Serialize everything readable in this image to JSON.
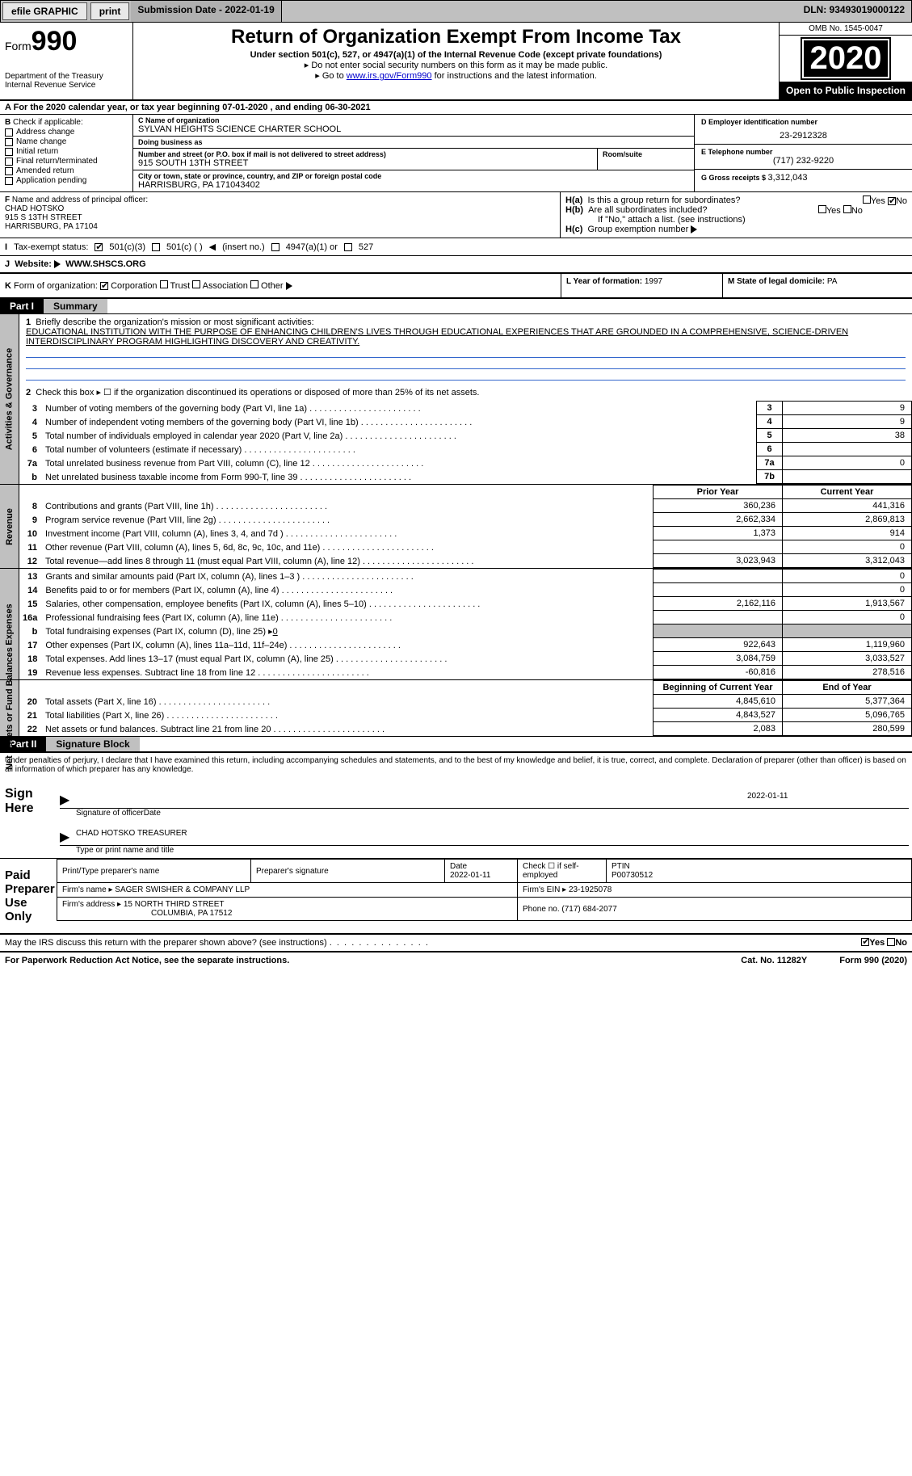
{
  "topbar": {
    "efile": "efile GRAPHIC",
    "print": "print",
    "submission": "Submission Date - 2022-01-19",
    "dln": "DLN: 93493019000122"
  },
  "header": {
    "form_label": "Form",
    "form_number": "990",
    "dept": "Department of the Treasury\nInternal Revenue Service",
    "title": "Return of Organization Exempt From Income Tax",
    "subtitle": "Under section 501(c), 527, or 4947(a)(1) of the Internal Revenue Code (except private foundations)",
    "note1": "Do not enter social security numbers on this form as it may be made public.",
    "note2_pre": "Go to ",
    "note2_link": "www.irs.gov/Form990",
    "note2_post": " for instructions and the latest information.",
    "omb": "OMB No. 1545-0047",
    "year": "2020",
    "open": "Open to Public Inspection"
  },
  "sectionA": {
    "text_pre": "For the 2020 calendar year, or tax year beginning ",
    "begin": "07-01-2020",
    "mid": " , and ending ",
    "end": "06-30-2021"
  },
  "blockB": {
    "label": "B",
    "check": "Check if applicable:",
    "items": [
      "Address change",
      "Name change",
      "Initial return",
      "Final return/terminated",
      "Amended return",
      "Application pending"
    ]
  },
  "blockC": {
    "name_lbl": "C Name of organization",
    "name": "SYLVAN HEIGHTS SCIENCE CHARTER SCHOOL",
    "dba_lbl": "Doing business as",
    "dba": "",
    "street_lbl": "Number and street (or P.O. box if mail is not delivered to street address)",
    "street": "915 SOUTH 13TH STREET",
    "room_lbl": "Room/suite",
    "city_lbl": "City or town, state or province, country, and ZIP or foreign postal code",
    "city": "HARRISBURG, PA  171043402"
  },
  "blockD": {
    "ein_lbl": "D Employer identification number",
    "ein": "23-2912328",
    "phone_lbl": "E Telephone number",
    "phone": "(717) 232-9220",
    "gross_lbl": "G Gross receipts $ ",
    "gross": "3,312,043"
  },
  "blockF": {
    "lbl": "F",
    "name_lbl": "Name and address of principal officer:",
    "name": "CHAD HOTSKO",
    "addr1": "915 S 13TH STREET",
    "addr2": "HARRISBURG, PA  17104"
  },
  "blockH": {
    "ha": "H(a)",
    "ha_text": "Is this a group return for subordinates?",
    "hb": "H(b)",
    "hb_text": "Are all subordinates included?",
    "hb_note": "If \"No,\" attach a list. (see instructions)",
    "hc": "H(c)",
    "hc_text": "Group exemption number",
    "yes": "Yes",
    "no": "No"
  },
  "taxexempt": {
    "lbl": "I",
    "text": "Tax-exempt status:",
    "opt1": "501(c)(3)",
    "opt2": "501(c) (   )",
    "opt2_note": "(insert no.)",
    "opt3": "4947(a)(1) or",
    "opt4": "527"
  },
  "website": {
    "lbl": "J",
    "text": "Website:",
    "url": "WWW.SHSCS.ORG"
  },
  "korg": {
    "lbl": "K",
    "text": "Form of organization:",
    "opts": [
      "Corporation",
      "Trust",
      "Association",
      "Other"
    ],
    "year_lbl": "L Year of formation: ",
    "year": "1997",
    "state_lbl": "M State of legal domicile: ",
    "state": "PA"
  },
  "part1": {
    "tab": "Part I",
    "title": "Summary",
    "side1": "Activities & Governance",
    "side2": "Revenue",
    "side3": "Expenses",
    "side4": "Net Assets or Fund Balances",
    "line1_lbl": "1",
    "line1": "Briefly describe the organization's mission or most significant activities:",
    "mission": "EDUCATIONAL INSTITUTION WITH THE PURPOSE OF ENHANCING CHILDREN'S LIVES THROUGH EDUCATIONAL EXPERIENCES THAT ARE GROUNDED IN A COMPREHENSIVE, SCIENCE-DRIVEN INTERDISCIPLINARY PROGRAM HIGHLIGHTING DISCOVERY AND CREATIVITY.",
    "line2": "Check this box ▸ ☐  if the organization discontinued its operations or disposed of more than 25% of its net assets.",
    "rows_gov": [
      {
        "n": "3",
        "t": "Number of voting members of the governing body (Part VI, line 1a)",
        "b": "3",
        "v": "9"
      },
      {
        "n": "4",
        "t": "Number of independent voting members of the governing body (Part VI, line 1b)",
        "b": "4",
        "v": "9"
      },
      {
        "n": "5",
        "t": "Total number of individuals employed in calendar year 2020 (Part V, line 2a)",
        "b": "5",
        "v": "38"
      },
      {
        "n": "6",
        "t": "Total number of volunteers (estimate if necessary)",
        "b": "6",
        "v": ""
      },
      {
        "n": "7a",
        "t": "Total unrelated business revenue from Part VIII, column (C), line 12",
        "b": "7a",
        "v": "0"
      },
      {
        "n": "b",
        "t": "Net unrelated business taxable income from Form 990-T, line 39",
        "b": "7b",
        "v": ""
      }
    ],
    "prior_hdr": "Prior Year",
    "current_hdr": "Current Year",
    "rows_rev": [
      {
        "n": "8",
        "t": "Contributions and grants (Part VIII, line 1h)",
        "p": "360,236",
        "c": "441,316"
      },
      {
        "n": "9",
        "t": "Program service revenue (Part VIII, line 2g)",
        "p": "2,662,334",
        "c": "2,869,813"
      },
      {
        "n": "10",
        "t": "Investment income (Part VIII, column (A), lines 3, 4, and 7d )",
        "p": "1,373",
        "c": "914"
      },
      {
        "n": "11",
        "t": "Other revenue (Part VIII, column (A), lines 5, 6d, 8c, 9c, 10c, and 11e)",
        "p": "",
        "c": "0"
      },
      {
        "n": "12",
        "t": "Total revenue—add lines 8 through 11 (must equal Part VIII, column (A), line 12)",
        "p": "3,023,943",
        "c": "3,312,043"
      }
    ],
    "rows_exp": [
      {
        "n": "13",
        "t": "Grants and similar amounts paid (Part IX, column (A), lines 1–3 )",
        "p": "",
        "c": "0"
      },
      {
        "n": "14",
        "t": "Benefits paid to or for members (Part IX, column (A), line 4)",
        "p": "",
        "c": "0"
      },
      {
        "n": "15",
        "t": "Salaries, other compensation, employee benefits (Part IX, column (A), lines 5–10)",
        "p": "2,162,116",
        "c": "1,913,567"
      },
      {
        "n": "16a",
        "t": "Professional fundraising fees (Part IX, column (A), line 11e)",
        "p": "",
        "c": "0"
      }
    ],
    "line16b": "Total fundraising expenses (Part IX, column (D), line 25) ▸",
    "line16b_val": "0",
    "rows_exp2": [
      {
        "n": "17",
        "t": "Other expenses (Part IX, column (A), lines 11a–11d, 11f–24e)",
        "p": "922,643",
        "c": "1,119,960"
      },
      {
        "n": "18",
        "t": "Total expenses. Add lines 13–17 (must equal Part IX, column (A), line 25)",
        "p": "3,084,759",
        "c": "3,033,527"
      },
      {
        "n": "19",
        "t": "Revenue less expenses. Subtract line 18 from line 12",
        "p": "-60,816",
        "c": "278,516"
      }
    ],
    "begin_hdr": "Beginning of Current Year",
    "end_hdr": "End of Year",
    "rows_net": [
      {
        "n": "20",
        "t": "Total assets (Part X, line 16)",
        "p": "4,845,610",
        "c": "5,377,364"
      },
      {
        "n": "21",
        "t": "Total liabilities (Part X, line 26)",
        "p": "4,843,527",
        "c": "5,096,765"
      },
      {
        "n": "22",
        "t": "Net assets or fund balances. Subtract line 21 from line 20",
        "p": "2,083",
        "c": "280,599"
      }
    ]
  },
  "part2": {
    "tab": "Part II",
    "title": "Signature Block",
    "penalties": "Under penalties of perjury, I declare that I have examined this return, including accompanying schedules and statements, and to the best of my knowledge and belief, it is true, correct, and complete. Declaration of preparer (other than officer) is based on all information of which preparer has any knowledge.",
    "sign_here": "Sign Here",
    "sig_officer": "Signature of officer",
    "sig_date": "Date",
    "sig_date_val": "2022-01-11",
    "officer_name": "CHAD HOTSKO  TREASURER",
    "type_name": "Type or print name and title",
    "paid_prep": "Paid Preparer Use Only",
    "prep_name_lbl": "Print/Type preparer's name",
    "prep_sig_lbl": "Preparer's signature",
    "prep_date_lbl": "Date",
    "prep_date": "2022-01-11",
    "self_emp": "Check ☐ if self-employed",
    "ptin_lbl": "PTIN",
    "ptin": "P00730512",
    "firm_name_lbl": "Firm's name    ▸ ",
    "firm_name": "SAGER SWISHER & COMPANY LLP",
    "firm_ein_lbl": "Firm's EIN ▸ ",
    "firm_ein": "23-1925078",
    "firm_addr_lbl": "Firm's address ▸ ",
    "firm_addr1": "15 NORTH THIRD STREET",
    "firm_addr2": "COLUMBIA, PA  17512",
    "phone_lbl": "Phone no. ",
    "phone": "(717) 684-2077",
    "discuss": "May the IRS discuss this return with the preparer shown above? (see instructions)",
    "yes": "Yes",
    "no": "No"
  },
  "footer": {
    "pra": "For Paperwork Reduction Act Notice, see the separate instructions.",
    "cat": "Cat. No. 11282Y",
    "form": "Form 990 (2020)"
  }
}
